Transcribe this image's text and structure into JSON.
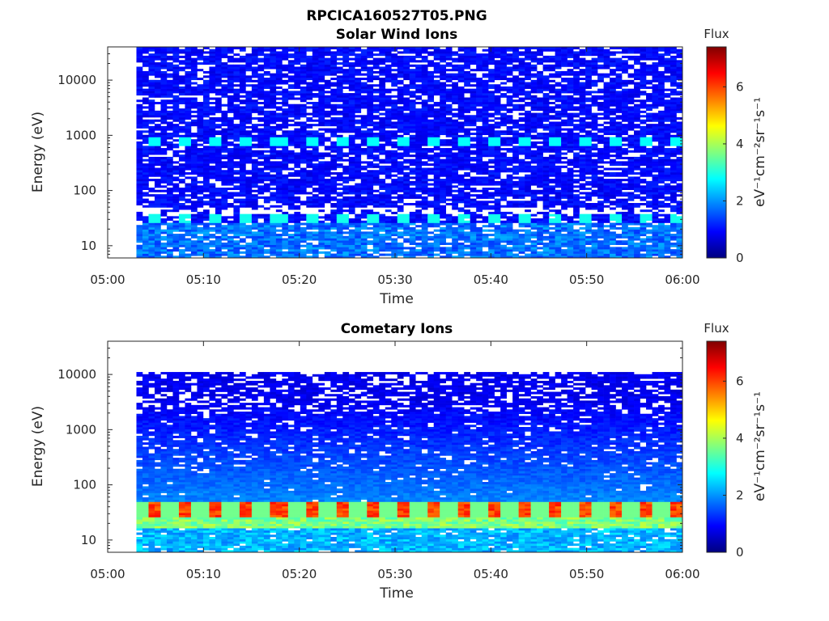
{
  "figure": {
    "title": "RPCICA160527T05.PNG"
  },
  "colors": {
    "colormap": "jet",
    "axis": "#262626",
    "background": "#ffffff",
    "no_data": "#ffffff"
  },
  "chart_data": [
    {
      "type": "heatmap",
      "title": "Solar Wind Ions",
      "xlabel": "Time",
      "ylabel": "Energy (eV)",
      "x_range": [
        "05:00",
        "06:00"
      ],
      "x_ticks": [
        "05:00",
        "05:10",
        "05:20",
        "05:30",
        "05:40",
        "05:50",
        "06:00"
      ],
      "data_start": "05:03",
      "data_end": "06:00",
      "ylim": [
        6,
        40000
      ],
      "yscale": "log",
      "y_ticks": [
        10,
        100,
        1000,
        10000
      ],
      "y_tick_labels": [
        "10",
        "100",
        "1000",
        "10000"
      ],
      "colorbar": {
        "title": "Flux",
        "label": "eV⁻¹cm⁻²sr⁻¹s⁻¹",
        "range": [
          0,
          7.4
        ],
        "ticks": [
          0,
          2,
          4,
          6
        ],
        "tick_labels": [
          "0",
          "2",
          "4",
          "6"
        ]
      },
      "features": [
        {
          "energy_eV": 750,
          "flux": 2.8,
          "period_min": 3.2,
          "note": "periodic proton peak"
        },
        {
          "energy_eV": 28,
          "flux": 2.9,
          "period_min": 3.2
        },
        {
          "energy_eV": 10,
          "flux": 1.6
        }
      ]
    },
    {
      "type": "heatmap",
      "title": "Cometary Ions",
      "xlabel": "Time",
      "ylabel": "Energy (eV)",
      "x_range": [
        "05:00",
        "06:00"
      ],
      "x_ticks": [
        "05:00",
        "05:10",
        "05:20",
        "05:30",
        "05:40",
        "05:50",
        "06:00"
      ],
      "data_start": "05:03",
      "data_end": "06:00",
      "ylim": [
        6,
        40000
      ],
      "yscale": "log",
      "y_ticks": [
        10,
        100,
        1000,
        10000
      ],
      "y_tick_labels": [
        "10",
        "100",
        "1000",
        "10000"
      ],
      "colorbar": {
        "title": "Flux",
        "label": "eV⁻¹cm⁻²sr⁻¹s⁻¹",
        "range": [
          0,
          7.4
        ],
        "ticks": [
          0,
          2,
          4,
          6
        ],
        "tick_labels": [
          "0",
          "2",
          "4",
          "6"
        ]
      },
      "features": [
        {
          "energy_eV": 33,
          "flux": 5.6,
          "period_min": 3.2,
          "note": "periodic intense low-energy band"
        },
        {
          "energy_eV": 20,
          "flux": 3.2
        },
        {
          "energy_eV": 10,
          "flux": 2.0
        }
      ]
    }
  ]
}
